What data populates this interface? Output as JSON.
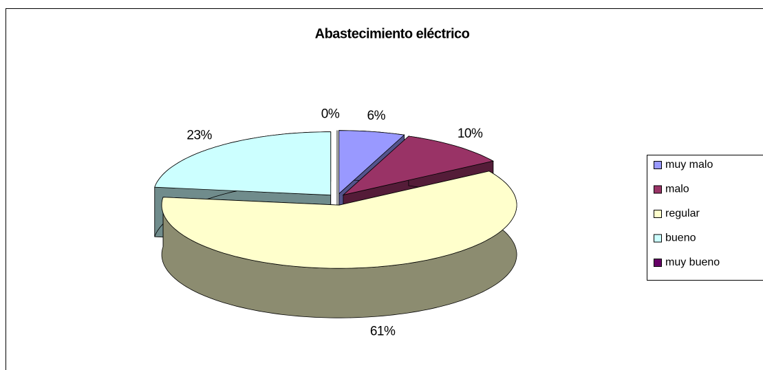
{
  "chart_data": {
    "type": "pie",
    "title": "Abastecimiento eléctrico",
    "categories": [
      "muy malo",
      "malo",
      "regular",
      "bueno",
      "muy bueno"
    ],
    "values": [
      6,
      10,
      61,
      23,
      0
    ],
    "value_labels": [
      "6%",
      "10%",
      "61%",
      "23%",
      "0%"
    ],
    "colors": [
      "#9999ff",
      "#993366",
      "#ffffcc",
      "#ccffff",
      "#660066"
    ],
    "legend": "right"
  }
}
